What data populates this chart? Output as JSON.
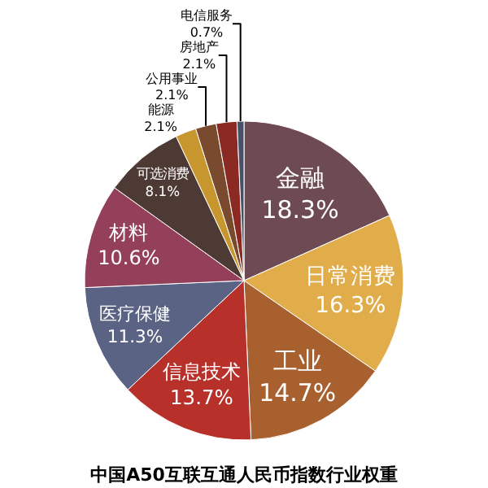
{
  "chart_data": {
    "type": "pie",
    "title": "中国A50互联互通人民币指数行业权重",
    "categories": [
      "金融",
      "日常消费",
      "工业",
      "信息技术",
      "医疗保健",
      "材料",
      "可选消费",
      "能源",
      "公用事业",
      "房地产",
      "电信服务"
    ],
    "values": [
      18.3,
      16.3,
      14.7,
      13.7,
      11.3,
      10.6,
      8.1,
      2.1,
      2.1,
      2.1,
      0.7
    ],
    "value_labels": [
      "18.3%",
      "16.3%",
      "14.7%",
      "13.7%",
      "11.3%",
      "10.6%",
      "8.1%",
      "2.1%",
      "2.1%",
      "2.1%",
      "0.7%"
    ],
    "colors": [
      "#6e4a52",
      "#e0ad4a",
      "#a8602e",
      "#b8302a",
      "#5a6384",
      "#94405a",
      "#4e3a34",
      "#c8962e",
      "#7a4a2e",
      "#8b2a22",
      "#4a5068"
    ],
    "legend": false
  }
}
